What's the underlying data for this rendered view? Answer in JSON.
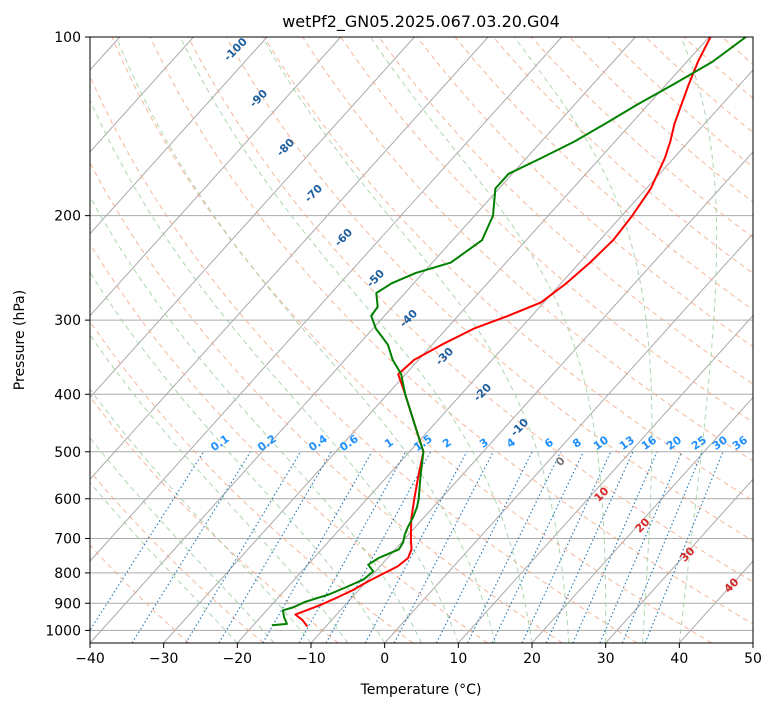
{
  "chart_data": {
    "type": "line",
    "chart_kind": "skew-T log-P diagram",
    "title": "wetPf2_GN05.2025.067.03.20.G04",
    "xlabel": "Temperature (°C)",
    "ylabel": "Pressure (hPa)",
    "xlim": [
      -40,
      50
    ],
    "ylim": [
      1050,
      100
    ],
    "y_scale": "log",
    "x_ticks": [
      "−40",
      "−30",
      "−20",
      "−10",
      "0",
      "10",
      "20",
      "30",
      "40",
      "50"
    ],
    "x_tick_values": [
      -40,
      -30,
      -20,
      -10,
      0,
      10,
      20,
      30,
      40,
      50
    ],
    "y_ticks": [
      "100",
      "200",
      "300",
      "400",
      "500",
      "600",
      "700",
      "800",
      "900",
      "1000"
    ],
    "y_tick_values": [
      100,
      200,
      300,
      400,
      500,
      600,
      700,
      800,
      900,
      1000
    ],
    "grid": true,
    "skew_lines": {
      "color": "#aaaaaa",
      "style": "solid"
    },
    "dry_adiabats": {
      "color": "#f4a582",
      "style": "dashed"
    },
    "moist_adiabats": {
      "color": "#9fcf9f",
      "style": "dashed"
    },
    "mixing_ratio_lines": {
      "color": "#1f77b4",
      "style": "dotted",
      "label_color": "#1e90ff",
      "labels": [
        "0.1",
        "0.2",
        "0.4",
        "0.6",
        "1",
        "1.5",
        "2",
        "3",
        "4",
        "6",
        "8",
        "10",
        "13",
        "16",
        "20",
        "25",
        "30",
        "36"
      ]
    },
    "isotherm_labels": {
      "color": "#1f5f9f",
      "labels": [
        "-100",
        "-90",
        "-80",
        "-70",
        "-60",
        "-50",
        "-40",
        "-30",
        "-20",
        "-10"
      ]
    },
    "red_labels": {
      "color": "#d62728",
      "labels": [
        "10",
        "20",
        "30",
        "40"
      ]
    },
    "gray_label": "0",
    "series": [
      {
        "color": "#ff0000",
        "points": [
          {
            "p": 985,
            "t": -12.5
          },
          {
            "p": 960,
            "t": -14.0
          },
          {
            "p": 940,
            "t": -15.6
          },
          {
            "p": 925,
            "t": -14.6
          },
          {
            "p": 905,
            "t": -13.3
          },
          {
            "p": 880,
            "t": -12.0
          },
          {
            "p": 855,
            "t": -10.8
          },
          {
            "p": 830,
            "t": -9.9
          },
          {
            "p": 805,
            "t": -8.8
          },
          {
            "p": 780,
            "t": -7.6
          },
          {
            "p": 755,
            "t": -7.2
          },
          {
            "p": 730,
            "t": -7.8
          },
          {
            "p": 700,
            "t": -9.2
          },
          {
            "p": 650,
            "t": -11.5
          },
          {
            "p": 600,
            "t": -13.6
          },
          {
            "p": 550,
            "t": -15.8
          },
          {
            "p": 500,
            "t": -18.1
          },
          {
            "p": 450,
            "t": -22.6
          },
          {
            "p": 400,
            "t": -27.6
          },
          {
            "p": 370,
            "t": -31.0
          },
          {
            "p": 350,
            "t": -30.6
          },
          {
            "p": 330,
            "t": -28.7
          },
          {
            "p": 310,
            "t": -26.3
          },
          {
            "p": 295,
            "t": -23.2
          },
          {
            "p": 280,
            "t": -20.4
          },
          {
            "p": 260,
            "t": -19.3
          },
          {
            "p": 240,
            "t": -18.6
          },
          {
            "p": 220,
            "t": -18.2
          },
          {
            "p": 200,
            "t": -18.6
          },
          {
            "p": 180,
            "t": -19.4
          },
          {
            "p": 160,
            "t": -21.2
          },
          {
            "p": 150,
            "t": -22.5
          },
          {
            "p": 140,
            "t": -24.1
          },
          {
            "p": 130,
            "t": -25.5
          },
          {
            "p": 120,
            "t": -27.0
          },
          {
            "p": 110,
            "t": -28.5
          },
          {
            "p": 100,
            "t": -29.8
          }
        ]
      },
      {
        "color": "#008000",
        "points": [
          {
            "p": 980,
            "t": -17.5
          },
          {
            "p": 975,
            "t": -15.6
          },
          {
            "p": 950,
            "t": -16.8
          },
          {
            "p": 925,
            "t": -17.8
          },
          {
            "p": 915,
            "t": -16.8
          },
          {
            "p": 895,
            "t": -15.8
          },
          {
            "p": 870,
            "t": -13.5
          },
          {
            "p": 845,
            "t": -12.0
          },
          {
            "p": 820,
            "t": -10.6
          },
          {
            "p": 795,
            "t": -10.3
          },
          {
            "p": 775,
            "t": -11.8
          },
          {
            "p": 755,
            "t": -11.2
          },
          {
            "p": 730,
            "t": -9.5
          },
          {
            "p": 710,
            "t": -9.8
          },
          {
            "p": 690,
            "t": -10.5
          },
          {
            "p": 670,
            "t": -11.0
          },
          {
            "p": 645,
            "t": -11.5
          },
          {
            "p": 620,
            "t": -12.2
          },
          {
            "p": 600,
            "t": -13.0
          },
          {
            "p": 550,
            "t": -15.5
          },
          {
            "p": 500,
            "t": -18.1
          },
          {
            "p": 450,
            "t": -22.6
          },
          {
            "p": 400,
            "t": -27.6
          },
          {
            "p": 370,
            "t": -30.6
          },
          {
            "p": 350,
            "t": -33.5
          },
          {
            "p": 330,
            "t": -36.0
          },
          {
            "p": 310,
            "t": -39.6
          },
          {
            "p": 295,
            "t": -41.8
          },
          {
            "p": 285,
            "t": -42.0
          },
          {
            "p": 270,
            "t": -43.9
          },
          {
            "p": 260,
            "t": -43.0
          },
          {
            "p": 250,
            "t": -41.0
          },
          {
            "p": 240,
            "t": -37.5
          },
          {
            "p": 220,
            "t": -36.0
          },
          {
            "p": 200,
            "t": -37.5
          },
          {
            "p": 180,
            "t": -40.5
          },
          {
            "p": 170,
            "t": -40.5
          },
          {
            "p": 160,
            "t": -38.0
          },
          {
            "p": 150,
            "t": -35.5
          },
          {
            "p": 140,
            "t": -33.5
          },
          {
            "p": 130,
            "t": -31.5
          },
          {
            "p": 120,
            "t": -29.0
          },
          {
            "p": 110,
            "t": -26.5
          },
          {
            "p": 100,
            "t": -25.0
          }
        ]
      }
    ]
  }
}
